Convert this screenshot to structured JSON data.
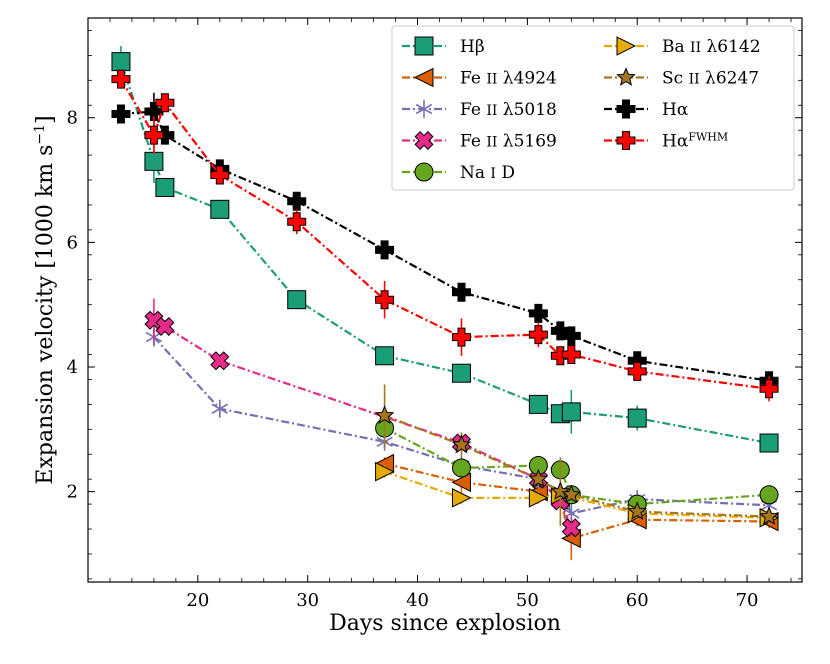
{
  "chart_data": {
    "type": "line",
    "title": "",
    "xlabel": "Days since explosion",
    "ylabel": "Expansion velocity [1000 km s",
    "ylabel_exp": "−1",
    "ylabel_close": "]",
    "xlim": [
      10,
      75
    ],
    "ylim": [
      0.55,
      9.6
    ],
    "x_ticks": [
      20,
      30,
      40,
      50,
      60,
      70
    ],
    "y_ticks": [
      2,
      4,
      6,
      8
    ],
    "legend_position": "top-right",
    "series": [
      {
        "name": "Hβ",
        "color": "#1b9e77",
        "marker": "square",
        "dash": "8,3,2,3",
        "x": [
          13,
          16,
          17,
          22,
          29,
          37,
          44,
          51,
          53,
          54,
          60,
          72
        ],
        "y": [
          8.9,
          7.3,
          6.88,
          6.53,
          5.08,
          4.18,
          3.9,
          3.4,
          3.25,
          3.28,
          3.18,
          2.78
        ],
        "err": [
          0.25,
          0.35,
          0.15,
          0.1,
          0.1,
          0.1,
          0.1,
          0.1,
          0.15,
          0.35,
          0.2,
          0.1
        ]
      },
      {
        "name": "Fe II λ4924",
        "color": "#d95f02",
        "marker": "tri-left",
        "dash": "8,3,2,3",
        "x": [
          37,
          44,
          51,
          53,
          54,
          60,
          72
        ],
        "y": [
          2.45,
          2.15,
          2.0,
          1.85,
          1.25,
          1.55,
          1.52
        ],
        "err": [
          0.1,
          0.15,
          0.15,
          0.1,
          0.35,
          0.1,
          0.1
        ]
      },
      {
        "name": "Fe II λ5018",
        "color": "#7570b3",
        "marker": "star6",
        "dash": "8,3,2,3",
        "x": [
          16,
          22,
          37,
          44,
          51,
          53,
          54,
          60,
          72
        ],
        "y": [
          4.48,
          3.33,
          2.8,
          2.42,
          2.2,
          2.0,
          1.65,
          1.88,
          1.78
        ],
        "err": [
          0.15,
          0.1,
          0.1,
          0.1,
          0.1,
          0.1,
          0.1,
          0.1,
          0.1
        ]
      },
      {
        "name": "Fe II λ5169",
        "color": "#e7298a",
        "marker": "xfilled",
        "dash": "8,3,2,3",
        "x": [
          16,
          17,
          22,
          44,
          51,
          53,
          54
        ],
        "y": [
          4.75,
          4.65,
          4.1,
          2.78,
          2.2,
          1.85,
          1.42
        ],
        "err": [
          0.35,
          0.1,
          0.1,
          0.15,
          0.1,
          0.1,
          0.15
        ]
      },
      {
        "name": "Na I D",
        "color": "#66a61e",
        "marker": "circle",
        "dash": "8,3,2,3",
        "x": [
          37,
          44,
          51,
          53,
          54,
          60,
          72
        ],
        "y": [
          3.02,
          2.38,
          2.42,
          2.35,
          1.95,
          1.8,
          1.95
        ],
        "err": [
          0.25,
          0.1,
          0.1,
          0.15,
          0.1,
          0.1,
          0.1
        ]
      },
      {
        "name": "Ba II λ6142",
        "color": "#e6ab02",
        "marker": "tri-right",
        "dash": "8,3,2,3",
        "x": [
          37,
          44,
          51,
          53,
          60,
          72
        ],
        "y": [
          2.32,
          1.9,
          1.9,
          1.95,
          1.65,
          1.58
        ],
        "err": [
          0.1,
          0.1,
          0.1,
          0.1,
          0.1,
          0.1
        ]
      },
      {
        "name": "Sc II λ6247",
        "color": "#a6761d",
        "marker": "star5",
        "dash": "8,3,2,3",
        "x": [
          37,
          44,
          51,
          53,
          54,
          60,
          72
        ],
        "y": [
          3.22,
          2.75,
          2.2,
          2.0,
          1.95,
          1.68,
          1.6
        ],
        "err": [
          0.5,
          0.2,
          0.1,
          0.55,
          0.1,
          0.1,
          0.1
        ]
      },
      {
        "name": "Hα",
        "color": "#000000",
        "marker": "plus",
        "dash": "8,3,2,3",
        "x": [
          13,
          16,
          17,
          22,
          29,
          37,
          44,
          51,
          53,
          54,
          60,
          72
        ],
        "y": [
          8.06,
          8.1,
          7.72,
          7.18,
          6.66,
          5.88,
          5.2,
          4.86,
          4.58,
          4.5,
          4.1,
          3.78
        ],
        "err": [
          0.1,
          0.3,
          0.1,
          0.1,
          0.1,
          0.1,
          0.1,
          0.1,
          0.1,
          0.1,
          0.1,
          0.1
        ]
      },
      {
        "name": "Hα^FWHM",
        "color": "#ff0000",
        "marker": "plus",
        "dash": "8,3,2,3",
        "x": [
          13,
          16,
          17,
          22,
          29,
          37,
          44,
          51,
          53,
          54,
          60,
          72
        ],
        "y": [
          8.62,
          7.72,
          8.24,
          7.08,
          6.33,
          5.08,
          4.48,
          4.52,
          4.18,
          4.2,
          3.93,
          3.65
        ],
        "err": [
          0.1,
          0.3,
          0.1,
          0.1,
          0.2,
          0.3,
          0.3,
          0.2,
          0.15,
          0.15,
          0.15,
          0.2
        ]
      }
    ],
    "legend": {
      "col1": [
        {
          "series": 0,
          "pre": "H",
          "mid": "β",
          "post": "",
          "sup": ""
        },
        {
          "series": 1,
          "pre": "Fe ",
          "mid": "II",
          "post": " λ4924",
          "sup": ""
        },
        {
          "series": 2,
          "pre": "Fe ",
          "mid": "II",
          "post": " λ5018",
          "sup": ""
        },
        {
          "series": 3,
          "pre": "Fe ",
          "mid": "II",
          "post": " λ5169",
          "sup": ""
        },
        {
          "series": 4,
          "pre": "Na ",
          "mid": "I",
          "post": " D",
          "sup": ""
        }
      ],
      "col2": [
        {
          "series": 5,
          "pre": "Ba ",
          "mid": "II",
          "post": " λ6142",
          "sup": ""
        },
        {
          "series": 6,
          "pre": "Sc ",
          "mid": "II",
          "post": " λ6247",
          "sup": ""
        },
        {
          "series": 7,
          "pre": "H",
          "mid": "α",
          "post": "",
          "sup": ""
        },
        {
          "series": 8,
          "pre": "H",
          "mid": "α",
          "post": "",
          "sup": "FWHM"
        }
      ]
    }
  }
}
